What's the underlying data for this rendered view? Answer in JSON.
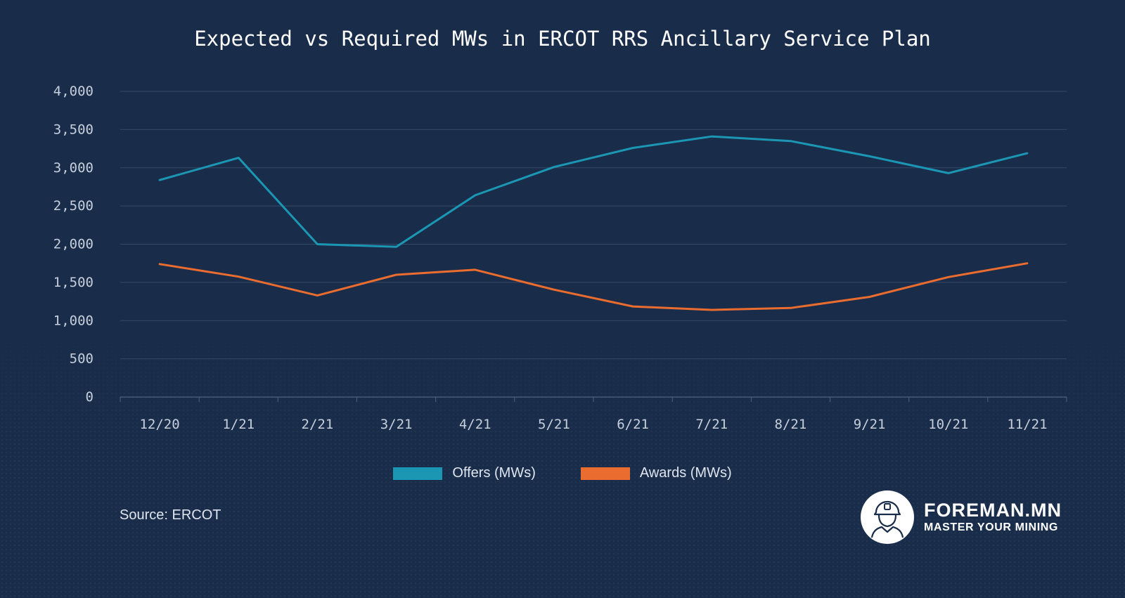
{
  "chart_data": {
    "type": "line",
    "title": "Expected vs Required MWs in ERCOT RRS Ancillary Service Plan",
    "categories": [
      "12/20",
      "1/21",
      "2/21",
      "3/21",
      "4/21",
      "5/21",
      "6/21",
      "7/21",
      "8/21",
      "9/21",
      "10/21",
      "11/21"
    ],
    "series": [
      {
        "name": "Offers (MWs)",
        "color": "#1b97b4",
        "values": [
          2840,
          3130,
          2000,
          1965,
          2640,
          3010,
          3260,
          3410,
          3350,
          3150,
          2930,
          3190
        ]
      },
      {
        "name": "Awards (MWs)",
        "color": "#ea6c2e",
        "values": [
          1740,
          1575,
          1330,
          1600,
          1665,
          1405,
          1185,
          1140,
          1165,
          1310,
          1570,
          1750
        ]
      }
    ],
    "ylim": [
      0,
      4000
    ],
    "yticks": [
      0,
      500,
      1000,
      1500,
      2000,
      2500,
      3000,
      3500,
      4000
    ],
    "ytick_labels": [
      "0",
      "500",
      "1,000",
      "1,500",
      "2,000",
      "2,500",
      "3,000",
      "3,500",
      "4,000"
    ],
    "grid": true,
    "legend_position": "bottom-center",
    "xlabel": "",
    "ylabel": ""
  },
  "source_text": "Source: ERCOT",
  "brand": {
    "name": "FOREMAN.MN",
    "tagline": "MASTER YOUR MINING",
    "logo_icon": "miner-helmet-icon"
  }
}
